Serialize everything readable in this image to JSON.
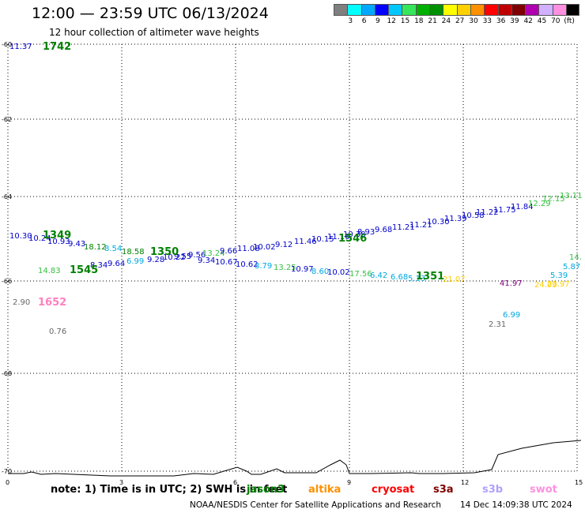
{
  "header": {
    "title": "12:00 — 23:59 UTC 06/13/2024",
    "subtitle": "12 hour collection of altimeter wave heights"
  },
  "legend": {
    "colors": [
      "#7f7f7f",
      "#00ffff",
      "#00a8ff",
      "#0000ff",
      "#00c8ff",
      "#36e65c",
      "#00b000",
      "#009000",
      "#ffff00",
      "#ffd000",
      "#ff9000",
      "#ff0000",
      "#c00000",
      "#800000",
      "#b000b0",
      "#d0b0ff",
      "#ff90e0",
      "#000000"
    ],
    "labels": [
      "3",
      "6",
      "9",
      "12",
      "15",
      "18",
      "21",
      "24",
      "27",
      "30",
      "33",
      "36",
      "39",
      "42",
      "45",
      "70",
      "(ft)"
    ]
  },
  "axes": {
    "x_ticks": [
      "0",
      "3",
      "6",
      "9",
      "12",
      "15"
    ],
    "y_ticks": [
      "-60",
      "-62",
      "-64",
      "-66",
      "-68",
      "-70"
    ]
  },
  "time_labels": [
    {
      "text": "1742",
      "color": "#008000"
    },
    {
      "text": "1349",
      "color": "#008000"
    },
    {
      "text": "1545",
      "color": "#008000"
    },
    {
      "text": "1350",
      "color": "#008000"
    },
    {
      "text": "1546",
      "color": "#008000"
    },
    {
      "text": "1351",
      "color": "#008000"
    },
    {
      "text": "1652",
      "color": "#ff80c0"
    }
  ],
  "wave_values": [
    {
      "text": "11.37",
      "color": "#0000c8"
    },
    {
      "text": "10.30",
      "color": "#0000c8"
    },
    {
      "text": "10.24",
      "color": "#0000c8"
    },
    {
      "text": "10.93",
      "color": "#0000c8"
    },
    {
      "text": "9.43",
      "color": "#0000c8"
    },
    {
      "text": "18.12",
      "color": "#008000"
    },
    {
      "text": "8.54",
      "color": "#00a8e0"
    },
    {
      "text": "18.58",
      "color": "#008000"
    },
    {
      "text": "14.83",
      "color": "#36c040"
    },
    {
      "text": "8.34",
      "color": "#0000c8"
    },
    {
      "text": "9.64",
      "color": "#0000c8"
    },
    {
      "text": "6.99",
      "color": "#00a8e0"
    },
    {
      "text": "9.28",
      "color": "#0000c8"
    },
    {
      "text": "10.22",
      "color": "#0000c8"
    },
    {
      "text": "9.55",
      "color": "#0000c8"
    },
    {
      "text": "9.56",
      "color": "#0000c8"
    },
    {
      "text": "13.24",
      "color": "#36c040"
    },
    {
      "text": "9.34",
      "color": "#0000c8"
    },
    {
      "text": "9.66",
      "color": "#0000c8"
    },
    {
      "text": "10.67",
      "color": "#0000c8"
    },
    {
      "text": "11.08",
      "color": "#0000c8"
    },
    {
      "text": "10.62",
      "color": "#0000c8"
    },
    {
      "text": "10.02",
      "color": "#0000c8"
    },
    {
      "text": "8.79",
      "color": "#00a8e0"
    },
    {
      "text": "13.25",
      "color": "#36c040"
    },
    {
      "text": "9.12",
      "color": "#0000c8"
    },
    {
      "text": "11.46",
      "color": "#0000c8"
    },
    {
      "text": "10.97",
      "color": "#0000c8"
    },
    {
      "text": "10.15",
      "color": "#0000c8"
    },
    {
      "text": "8.60",
      "color": "#00a8e0"
    },
    {
      "text": "11.10",
      "color": "#0000c8"
    },
    {
      "text": "10.02",
      "color": "#0000c8"
    },
    {
      "text": "10.38",
      "color": "#0000c8"
    },
    {
      "text": "17.56",
      "color": "#36c040"
    },
    {
      "text": "8.93",
      "color": "#0000c8"
    },
    {
      "text": "9.68",
      "color": "#0000c8"
    },
    {
      "text": "6.42",
      "color": "#00a8e0"
    },
    {
      "text": "11.21",
      "color": "#0000c8"
    },
    {
      "text": "6.68",
      "color": "#00a8e0"
    },
    {
      "text": "5.13",
      "color": "#00a8e0"
    },
    {
      "text": "11.21",
      "color": "#0000c8"
    },
    {
      "text": "10.30",
      "color": "#0000c8"
    },
    {
      "text": "21.07",
      "color": "#ffd000"
    },
    {
      "text": "11.39",
      "color": "#0000c8"
    },
    {
      "text": "10.58",
      "color": "#0000c8"
    },
    {
      "text": "11.22",
      "color": "#0000c8"
    },
    {
      "text": "11.75",
      "color": "#0000c8"
    },
    {
      "text": "11.84",
      "color": "#0000c8"
    },
    {
      "text": "12.29",
      "color": "#36c040"
    },
    {
      "text": "12.15",
      "color": "#36c040"
    },
    {
      "text": "13.11",
      "color": "#36c040"
    },
    {
      "text": "41.97",
      "color": "#800080"
    },
    {
      "text": "24.09",
      "color": "#ffd000"
    },
    {
      "text": "23.97",
      "color": "#ffd000"
    },
    {
      "text": "5.39",
      "color": "#00a8e0"
    },
    {
      "text": "5.87",
      "color": "#00a8e0"
    },
    {
      "text": "14.",
      "color": "#36c040"
    },
    {
      "text": "6.99",
      "color": "#00a8e0"
    },
    {
      "text": "2.31",
      "color": "#666666"
    },
    {
      "text": "2.90",
      "color": "#666666"
    },
    {
      "text": "0.76",
      "color": "#666666"
    }
  ],
  "footer": {
    "note": "note:  1) Time is in UTC;  2) SWH is in feet",
    "missions": [
      {
        "name": "jason3",
        "color": "#008000"
      },
      {
        "name": "altika",
        "color": "#ff9000"
      },
      {
        "name": "cryosat",
        "color": "#ff0000"
      },
      {
        "name": "s3a",
        "color": "#800000"
      },
      {
        "name": "s3b",
        "color": "#b0a0ff"
      },
      {
        "name": "swot",
        "color": "#ff90e0"
      }
    ],
    "credit": "NOAA/NESDIS Center for Satellite Applications and Research",
    "timestamp": "14 Dec 14:09:38 UTC 2024"
  }
}
